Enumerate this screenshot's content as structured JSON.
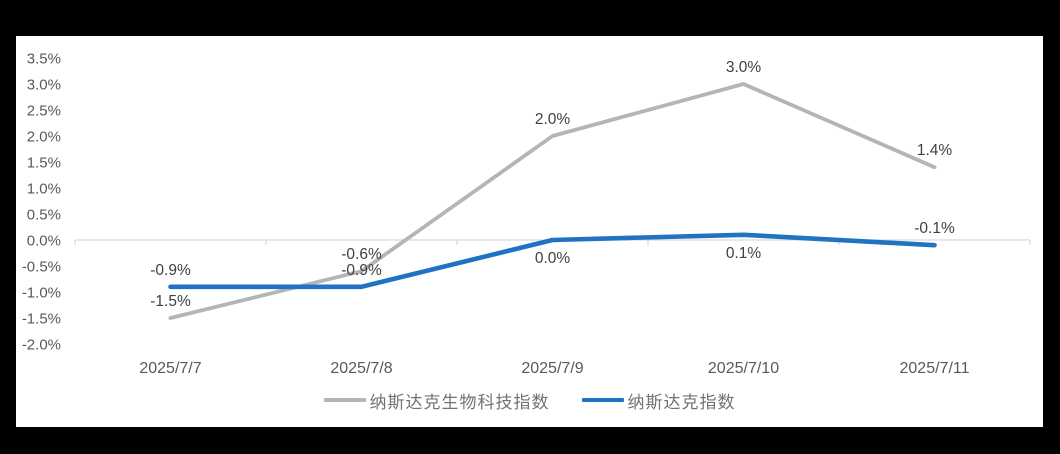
{
  "chart_data": {
    "type": "line",
    "title": "",
    "categories": [
      "2025/7/7",
      "2025/7/8",
      "2025/7/9",
      "2025/7/10",
      "2025/7/11"
    ],
    "series": [
      {
        "name": "纳斯达克生物科技指数",
        "color": "#b5b5b5",
        "values": [
          -1.5,
          -0.6,
          2.0,
          3.0,
          1.4
        ],
        "point_labels": [
          "-1.5%",
          "-0.6%",
          "2.0%",
          "3.0%",
          "1.4%"
        ],
        "label_side": [
          "above",
          "above",
          "above",
          "above",
          "above"
        ]
      },
      {
        "name": "纳斯达克指数",
        "color": "#2073c2",
        "values": [
          -0.9,
          -0.9,
          0.0,
          0.1,
          -0.1
        ],
        "point_labels": [
          "-0.9%",
          "-0.9%",
          "0.0%",
          "0.1%",
          "-0.1%"
        ],
        "label_side": [
          "above",
          "above",
          "below",
          "below",
          "above"
        ]
      }
    ],
    "ylim": [
      -2.0,
      3.5
    ],
    "ytick_step": 0.5,
    "ytick_labels": [
      "3.5%",
      "3.0%",
      "2.5%",
      "2.0%",
      "1.5%",
      "1.0%",
      "0.5%",
      "0.0%",
      "-0.5%",
      "-1.0%",
      "-1.5%",
      "-2.0%"
    ],
    "grid": "zero-axis-only",
    "legend_position": "bottom",
    "colors": {
      "axis_line": "#d9d9d9",
      "tick_label": "#595959",
      "data_label": "#404040",
      "frame": "#000000",
      "background": "#ffffff"
    }
  }
}
